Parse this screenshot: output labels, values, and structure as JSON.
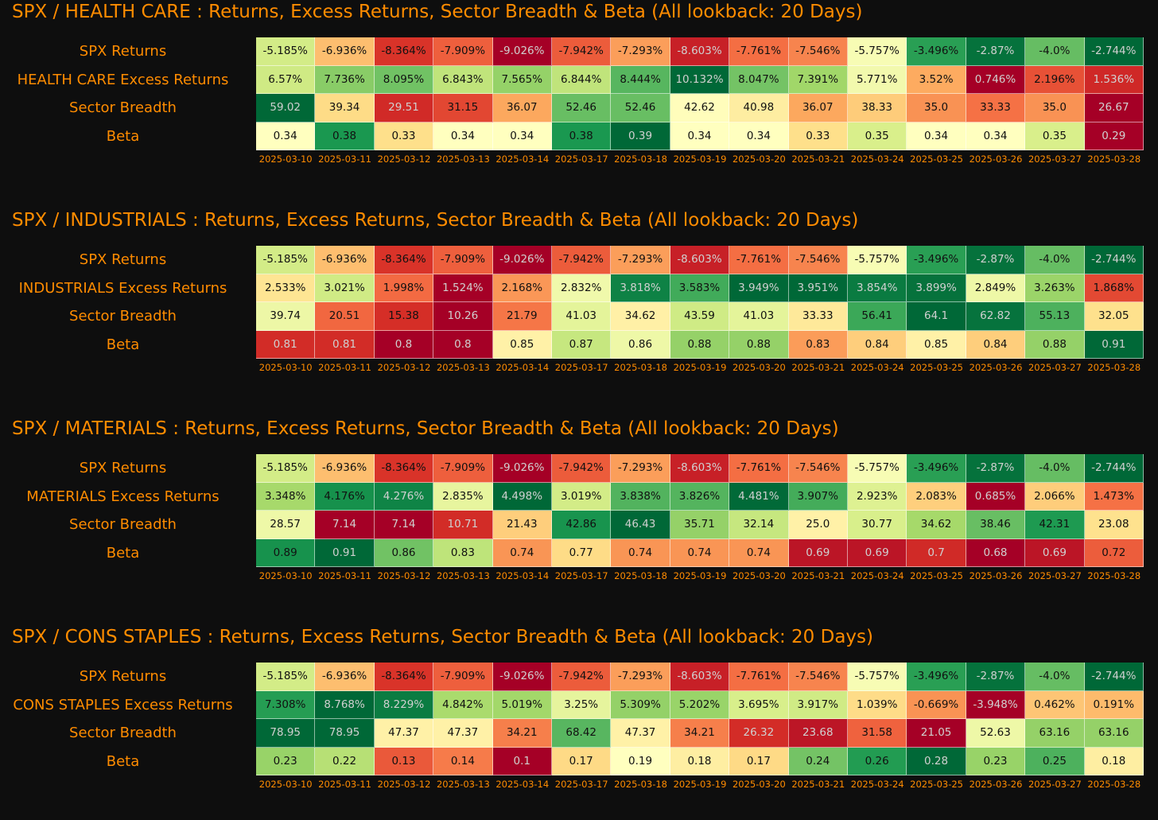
{
  "chart_data": [
    {
      "type": "heatmap",
      "title": "SPX / HEALTH CARE : Returns, Excess Returns, Sector Breadth & Beta (All lookback: 20 Days)",
      "x": [
        "2025-03-10",
        "2025-03-11",
        "2025-03-12",
        "2025-03-13",
        "2025-03-14",
        "2025-03-17",
        "2025-03-18",
        "2025-03-19",
        "2025-03-20",
        "2025-03-21",
        "2025-03-24",
        "2025-03-25",
        "2025-03-26",
        "2025-03-27",
        "2025-03-28"
      ],
      "rows": [
        {
          "label": "SPX Returns",
          "values": [
            "-5.185%",
            "-6.936%",
            "-8.364%",
            "-7.909%",
            "-9.026%",
            "-7.942%",
            "-7.293%",
            "-8.603%",
            "-7.761%",
            "-7.546%",
            "-5.757%",
            "-3.496%",
            "-2.87%",
            "-4.0%",
            "-2.744%"
          ]
        },
        {
          "label": "HEALTH CARE Excess Returns",
          "values": [
            "6.57%",
            "7.736%",
            "8.095%",
            "6.843%",
            "7.565%",
            "6.844%",
            "8.444%",
            "10.132%",
            "8.047%",
            "7.391%",
            "5.771%",
            "3.52%",
            "0.746%",
            "2.196%",
            "1.536%"
          ]
        },
        {
          "label": "Sector Breadth",
          "values": [
            "59.02",
            "39.34",
            "29.51",
            "31.15",
            "36.07",
            "52.46",
            "52.46",
            "42.62",
            "40.98",
            "36.07",
            "38.33",
            "35.0",
            "33.33",
            "35.0",
            "26.67"
          ]
        },
        {
          "label": "Beta",
          "values": [
            "0.34",
            "0.38",
            "0.33",
            "0.34",
            "0.34",
            "0.38",
            "0.39",
            "0.34",
            "0.34",
            "0.33",
            "0.35",
            "0.34",
            "0.34",
            "0.35",
            "0.29"
          ]
        }
      ]
    },
    {
      "type": "heatmap",
      "title": "SPX / INDUSTRIALS : Returns, Excess Returns, Sector Breadth & Beta (All lookback: 20 Days)",
      "x": [
        "2025-03-10",
        "2025-03-11",
        "2025-03-12",
        "2025-03-13",
        "2025-03-14",
        "2025-03-17",
        "2025-03-18",
        "2025-03-19",
        "2025-03-20",
        "2025-03-21",
        "2025-03-24",
        "2025-03-25",
        "2025-03-26",
        "2025-03-27",
        "2025-03-28"
      ],
      "rows": [
        {
          "label": "SPX Returns",
          "values": [
            "-5.185%",
            "-6.936%",
            "-8.364%",
            "-7.909%",
            "-9.026%",
            "-7.942%",
            "-7.293%",
            "-8.603%",
            "-7.761%",
            "-7.546%",
            "-5.757%",
            "-3.496%",
            "-2.87%",
            "-4.0%",
            "-2.744%"
          ]
        },
        {
          "label": "INDUSTRIALS Excess Returns",
          "values": [
            "2.533%",
            "3.021%",
            "1.998%",
            "1.524%",
            "2.168%",
            "2.832%",
            "3.818%",
            "3.583%",
            "3.949%",
            "3.951%",
            "3.854%",
            "3.899%",
            "2.849%",
            "3.263%",
            "1.868%"
          ]
        },
        {
          "label": "Sector Breadth",
          "values": [
            "39.74",
            "20.51",
            "15.38",
            "10.26",
            "21.79",
            "41.03",
            "34.62",
            "43.59",
            "41.03",
            "33.33",
            "56.41",
            "64.1",
            "62.82",
            "55.13",
            "32.05"
          ]
        },
        {
          "label": "Beta",
          "values": [
            "0.81",
            "0.81",
            "0.8",
            "0.8",
            "0.85",
            "0.87",
            "0.86",
            "0.88",
            "0.88",
            "0.83",
            "0.84",
            "0.85",
            "0.84",
            "0.88",
            "0.91"
          ]
        }
      ]
    },
    {
      "type": "heatmap",
      "title": "SPX / MATERIALS : Returns, Excess Returns, Sector Breadth & Beta (All lookback: 20 Days)",
      "x": [
        "2025-03-10",
        "2025-03-11",
        "2025-03-12",
        "2025-03-13",
        "2025-03-14",
        "2025-03-17",
        "2025-03-18",
        "2025-03-19",
        "2025-03-20",
        "2025-03-21",
        "2025-03-24",
        "2025-03-25",
        "2025-03-26",
        "2025-03-27",
        "2025-03-28"
      ],
      "rows": [
        {
          "label": "SPX Returns",
          "values": [
            "-5.185%",
            "-6.936%",
            "-8.364%",
            "-7.909%",
            "-9.026%",
            "-7.942%",
            "-7.293%",
            "-8.603%",
            "-7.761%",
            "-7.546%",
            "-5.757%",
            "-3.496%",
            "-2.87%",
            "-4.0%",
            "-2.744%"
          ]
        },
        {
          "label": "MATERIALS Excess Returns",
          "values": [
            "3.348%",
            "4.176%",
            "4.276%",
            "2.835%",
            "4.498%",
            "3.019%",
            "3.838%",
            "3.826%",
            "4.481%",
            "3.907%",
            "2.923%",
            "2.083%",
            "0.685%",
            "2.066%",
            "1.473%"
          ]
        },
        {
          "label": "Sector Breadth",
          "values": [
            "28.57",
            "7.14",
            "7.14",
            "10.71",
            "21.43",
            "42.86",
            "46.43",
            "35.71",
            "32.14",
            "25.0",
            "30.77",
            "34.62",
            "38.46",
            "42.31",
            "23.08"
          ]
        },
        {
          "label": "Beta",
          "values": [
            "0.89",
            "0.91",
            "0.86",
            "0.83",
            "0.74",
            "0.77",
            "0.74",
            "0.74",
            "0.74",
            "0.69",
            "0.69",
            "0.7",
            "0.68",
            "0.69",
            "0.72"
          ]
        }
      ]
    },
    {
      "type": "heatmap",
      "title": "SPX / CONS STAPLES : Returns, Excess Returns, Sector Breadth & Beta (All lookback: 20 Days)",
      "x": [
        "2025-03-10",
        "2025-03-11",
        "2025-03-12",
        "2025-03-13",
        "2025-03-14",
        "2025-03-17",
        "2025-03-18",
        "2025-03-19",
        "2025-03-20",
        "2025-03-21",
        "2025-03-24",
        "2025-03-25",
        "2025-03-26",
        "2025-03-27",
        "2025-03-28"
      ],
      "rows": [
        {
          "label": "SPX Returns",
          "values": [
            "-5.185%",
            "-6.936%",
            "-8.364%",
            "-7.909%",
            "-9.026%",
            "-7.942%",
            "-7.293%",
            "-8.603%",
            "-7.761%",
            "-7.546%",
            "-5.757%",
            "-3.496%",
            "-2.87%",
            "-4.0%",
            "-2.744%"
          ]
        },
        {
          "label": "CONS STAPLES Excess Returns",
          "values": [
            "7.308%",
            "8.768%",
            "8.229%",
            "4.842%",
            "5.019%",
            "3.25%",
            "5.309%",
            "5.202%",
            "3.695%",
            "3.917%",
            "1.039%",
            "-0.669%",
            "-3.948%",
            "0.462%",
            "0.191%"
          ]
        },
        {
          "label": "Sector Breadth",
          "values": [
            "78.95",
            "78.95",
            "47.37",
            "47.37",
            "34.21",
            "68.42",
            "47.37",
            "34.21",
            "26.32",
            "23.68",
            "31.58",
            "21.05",
            "52.63",
            "63.16",
            "63.16"
          ]
        },
        {
          "label": "Beta",
          "values": [
            "0.23",
            "0.22",
            "0.13",
            "0.14",
            "0.1",
            "0.17",
            "0.19",
            "0.18",
            "0.17",
            "0.24",
            "0.26",
            "0.28",
            "0.23",
            "0.25",
            "0.18"
          ]
        }
      ]
    }
  ],
  "colors": {
    "title_text": "#ff8c00",
    "background": "#0e0e0e",
    "colorscale": [
      "#a50026",
      "#d73027",
      "#f46d43",
      "#fdae61",
      "#fee08b",
      "#ffffbf",
      "#d9ef8b",
      "#a6d96a",
      "#66bd63",
      "#1a9850",
      "#006837"
    ]
  }
}
